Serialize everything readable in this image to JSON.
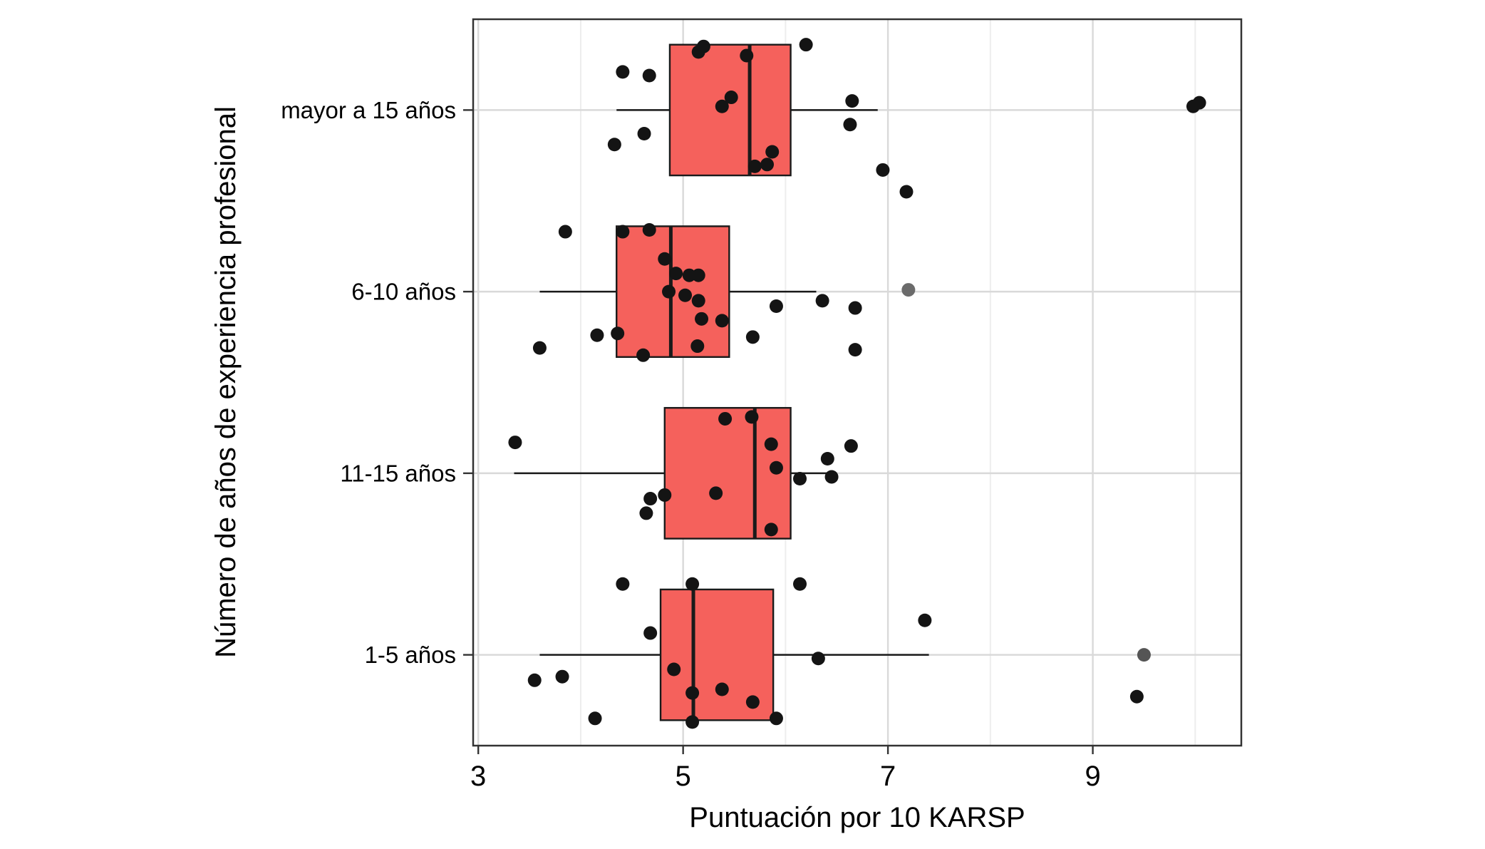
{
  "chart_data": {
    "type": "boxplot",
    "orientation": "horizontal",
    "title": "",
    "xlabel": "Puntuación por 10 KARSP",
    "ylabel": "Número de años de experiencia profesional",
    "x_ticks": [
      3,
      5,
      7,
      9
    ],
    "x_minor_ticks": [
      4,
      6,
      8,
      10
    ],
    "xlim": [
      2.95,
      10.45
    ],
    "categories_top_to_bottom": [
      "mayor a 15 años",
      "6-10 años",
      "11-15 años",
      "1-5 años"
    ],
    "legend": "none",
    "grid": "on",
    "style": {
      "box_fill": "#F5615C",
      "box_stroke": "#1A1A1A",
      "median_stroke": "#1A1A1A",
      "whisker_stroke": "#1A1A1A",
      "point_color": "#141414",
      "grid_major_color": "#D9D9D9",
      "grid_minor_color": "#EDEDED",
      "panel_border_color": "#333333",
      "panel_background": "#FFFFFF",
      "text_color": "#000000"
    },
    "groups": [
      {
        "label": "mayor a 15 años",
        "whisker_low": 4.35,
        "q1": 4.87,
        "median": 5.65,
        "q3": 6.05,
        "whisker_high": 6.9,
        "outliers": [
          9.98,
          10.04
        ],
        "points": [
          [
            5.2,
            -0.35
          ],
          [
            5.15,
            -0.32
          ],
          [
            6.2,
            -0.36
          ],
          [
            4.41,
            -0.21
          ],
          [
            4.67,
            -0.19
          ],
          [
            5.62,
            -0.3
          ],
          [
            5.38,
            -0.02
          ],
          [
            5.47,
            -0.07
          ],
          [
            6.65,
            -0.05
          ],
          [
            4.33,
            0.19
          ],
          [
            4.62,
            0.13
          ],
          [
            5.87,
            0.23
          ],
          [
            5.7,
            0.31
          ],
          [
            5.82,
            0.3
          ],
          [
            6.63,
            0.08
          ],
          [
            6.95,
            0.33
          ],
          [
            7.18,
            0.45
          ],
          [
            9.98,
            -0.02
          ],
          [
            10.04,
            -0.04
          ]
        ]
      },
      {
        "label": "6-10 años",
        "whisker_low": 3.6,
        "q1": 4.35,
        "median": 4.88,
        "q3": 5.45,
        "whisker_high": 6.3,
        "outliers": [
          7.2
        ],
        "points": [
          [
            3.85,
            -0.33
          ],
          [
            4.41,
            -0.33
          ],
          [
            4.67,
            -0.34
          ],
          [
            4.82,
            -0.18
          ],
          [
            4.93,
            -0.1
          ],
          [
            5.06,
            -0.09
          ],
          [
            5.15,
            -0.09
          ],
          [
            4.86,
            0.0
          ],
          [
            5.02,
            0.02
          ],
          [
            5.15,
            0.05
          ],
          [
            5.91,
            0.08
          ],
          [
            6.36,
            0.05
          ],
          [
            6.68,
            0.09
          ],
          [
            7.2,
            -0.01,
            "#6B6B6B"
          ],
          [
            4.16,
            0.24
          ],
          [
            4.36,
            0.23
          ],
          [
            5.18,
            0.15
          ],
          [
            5.38,
            0.16
          ],
          [
            5.68,
            0.25
          ],
          [
            3.6,
            0.31
          ],
          [
            4.61,
            0.35
          ],
          [
            6.68,
            0.32
          ],
          [
            5.14,
            0.3
          ]
        ]
      },
      {
        "label": "11-15 años",
        "whisker_low": 3.35,
        "q1": 4.82,
        "median": 5.7,
        "q3": 6.05,
        "whisker_high": 6.42,
        "outliers": [],
        "points": [
          [
            5.41,
            -0.3
          ],
          [
            5.67,
            -0.31
          ],
          [
            3.36,
            -0.17
          ],
          [
            5.86,
            -0.16
          ],
          [
            6.41,
            -0.08
          ],
          [
            6.64,
            -0.15
          ],
          [
            5.91,
            -0.03
          ],
          [
            6.14,
            0.03
          ],
          [
            6.45,
            0.02
          ],
          [
            5.32,
            0.11
          ],
          [
            4.82,
            0.12
          ],
          [
            4.68,
            0.14
          ],
          [
            4.64,
            0.22
          ],
          [
            5.86,
            0.31
          ]
        ]
      },
      {
        "label": "1-5 años",
        "whisker_low": 3.6,
        "q1": 4.78,
        "median": 5.1,
        "q3": 5.88,
        "whisker_high": 7.4,
        "outliers": [
          9.5
        ],
        "points": [
          [
            4.41,
            -0.39
          ],
          [
            5.09,
            -0.39
          ],
          [
            6.14,
            -0.39
          ],
          [
            7.36,
            -0.19
          ],
          [
            4.68,
            -0.12
          ],
          [
            6.32,
            0.02
          ],
          [
            4.91,
            0.08
          ],
          [
            3.55,
            0.14
          ],
          [
            3.82,
            0.12
          ],
          [
            5.09,
            0.21
          ],
          [
            5.38,
            0.19
          ],
          [
            5.68,
            0.26
          ],
          [
            4.14,
            0.35
          ],
          [
            5.09,
            0.37
          ],
          [
            5.91,
            0.35
          ],
          [
            9.5,
            0.0,
            "#555555"
          ],
          [
            9.43,
            0.23
          ]
        ]
      }
    ]
  }
}
